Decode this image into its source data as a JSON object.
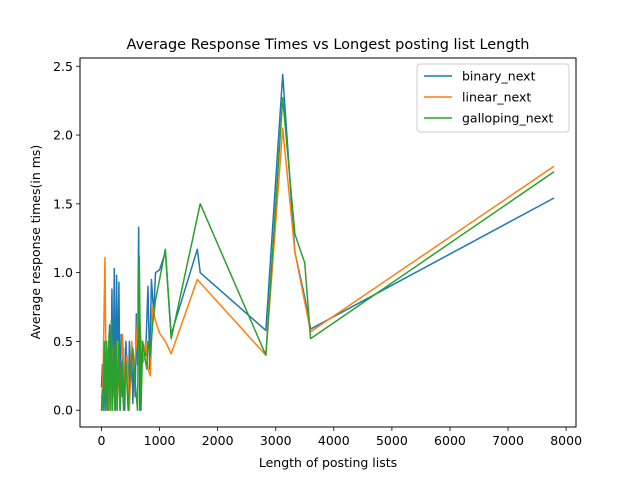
{
  "chart_data": {
    "type": "line",
    "title": "Average Response Times vs Longest posting list Length",
    "xlabel": "Length of posting lists",
    "ylabel": "Average response times(in ms)",
    "xlim": [
      -370,
      8170
    ],
    "ylim": [
      -0.122,
      2.56
    ],
    "xticks": [
      0,
      1000,
      2000,
      3000,
      4000,
      5000,
      6000,
      7000,
      8000
    ],
    "yticks": [
      0.0,
      0.5,
      1.0,
      1.5,
      2.0,
      2.5
    ],
    "xtick_labels": [
      "0",
      "1000",
      "2000",
      "3000",
      "4000",
      "5000",
      "6000",
      "7000",
      "8000"
    ],
    "ytick_labels": [
      "0.0",
      "0.5",
      "1.0",
      "1.5",
      "2.0",
      "2.5"
    ],
    "grid": false,
    "legend_position": "top-right",
    "series": [
      {
        "name": "binary_next",
        "color": "#1f77b4",
        "points": [
          [
            0,
            0.17
          ],
          [
            15,
            0.33
          ],
          [
            30,
            0.0
          ],
          [
            45,
            0.45
          ],
          [
            60,
            0.0
          ],
          [
            80,
            0.5
          ],
          [
            100,
            0.0
          ],
          [
            120,
            0.35
          ],
          [
            140,
            0.62
          ],
          [
            160,
            0.0
          ],
          [
            180,
            0.88
          ],
          [
            200,
            0.1
          ],
          [
            220,
            1.03
          ],
          [
            240,
            0.0
          ],
          [
            260,
            0.98
          ],
          [
            280,
            0.2
          ],
          [
            300,
            0.93
          ],
          [
            320,
            0.0
          ],
          [
            340,
            0.55
          ],
          [
            360,
            0.1
          ],
          [
            380,
            0.45
          ],
          [
            400,
            0.0
          ],
          [
            420,
            0.5
          ],
          [
            440,
            0.25
          ],
          [
            460,
            0.0
          ],
          [
            480,
            0.5
          ],
          [
            500,
            0.2
          ],
          [
            520,
            0.45
          ],
          [
            540,
            0.05
          ],
          [
            560,
            0.35
          ],
          [
            580,
            0.1
          ],
          [
            600,
            0.7
          ],
          [
            620,
            0.33
          ],
          [
            640,
            1.33
          ],
          [
            660,
            0.0
          ],
          [
            700,
            0.5
          ],
          [
            760,
            0.4
          ],
          [
            800,
            0.9
          ],
          [
            830,
            0.3
          ],
          [
            860,
            0.95
          ],
          [
            900,
            0.7
          ],
          [
            930,
            1.0
          ],
          [
            1000,
            1.02
          ],
          [
            1100,
            1.15
          ],
          [
            1200,
            0.55
          ],
          [
            1650,
            1.17
          ],
          [
            1700,
            1.0
          ],
          [
            2830,
            0.58
          ],
          [
            3120,
            2.44
          ],
          [
            3330,
            1.15
          ],
          [
            3500,
            0.82
          ],
          [
            3600,
            0.59
          ],
          [
            7780,
            1.54
          ]
        ]
      },
      {
        "name": "linear_next",
        "color": "#ff7f0e",
        "points": [
          [
            0,
            0.1
          ],
          [
            20,
            0.05
          ],
          [
            40,
            0.6
          ],
          [
            60,
            1.11
          ],
          [
            80,
            0.15
          ],
          [
            100,
            0.45
          ],
          [
            120,
            0.0
          ],
          [
            140,
            0.4
          ],
          [
            160,
            0.0
          ],
          [
            200,
            0.45
          ],
          [
            240,
            0.1
          ],
          [
            280,
            0.5
          ],
          [
            320,
            0.0
          ],
          [
            360,
            0.55
          ],
          [
            400,
            0.2
          ],
          [
            440,
            0.4
          ],
          [
            480,
            0.0
          ],
          [
            520,
            0.5
          ],
          [
            560,
            0.3
          ],
          [
            600,
            0.48
          ],
          [
            640,
            0.8
          ],
          [
            680,
            0.5
          ],
          [
            720,
            0.35
          ],
          [
            760,
            0.5
          ],
          [
            800,
            0.3
          ],
          [
            840,
            0.25
          ],
          [
            880,
            0.75
          ],
          [
            930,
            0.65
          ],
          [
            1000,
            0.56
          ],
          [
            1100,
            0.5
          ],
          [
            1200,
            0.41
          ],
          [
            1650,
            0.95
          ],
          [
            2830,
            0.4
          ],
          [
            3120,
            2.05
          ],
          [
            3330,
            1.15
          ],
          [
            3600,
            0.57
          ],
          [
            7780,
            1.77
          ]
        ]
      },
      {
        "name": "galloping_next",
        "color": "#2ca02c",
        "points": [
          [
            0,
            0.0
          ],
          [
            15,
            0.15
          ],
          [
            30,
            0.0
          ],
          [
            50,
            0.5
          ],
          [
            70,
            0.0
          ],
          [
            90,
            0.5
          ],
          [
            110,
            0.0
          ],
          [
            130,
            0.55
          ],
          [
            150,
            0.0
          ],
          [
            170,
            0.65
          ],
          [
            190,
            0.0
          ],
          [
            210,
            0.5
          ],
          [
            230,
            0.0
          ],
          [
            250,
            0.5
          ],
          [
            270,
            0.0
          ],
          [
            300,
            0.5
          ],
          [
            320,
            0.0
          ],
          [
            350,
            0.35
          ],
          [
            380,
            0.0
          ],
          [
            420,
            0.35
          ],
          [
            460,
            0.0
          ],
          [
            500,
            0.3
          ],
          [
            540,
            0.45
          ],
          [
            580,
            0.2
          ],
          [
            620,
            0.0
          ],
          [
            650,
            1.12
          ],
          [
            680,
            0.0
          ],
          [
            710,
            0.5
          ],
          [
            740,
            0.4
          ],
          [
            780,
            0.3
          ],
          [
            800,
            0.5
          ],
          [
            840,
            0.4
          ],
          [
            880,
            0.62
          ],
          [
            930,
            0.8
          ],
          [
            1000,
            0.95
          ],
          [
            1100,
            1.17
          ],
          [
            1200,
            0.52
          ],
          [
            1700,
            1.5
          ],
          [
            2830,
            0.4
          ],
          [
            3120,
            2.27
          ],
          [
            3330,
            1.28
          ],
          [
            3500,
            1.07
          ],
          [
            3600,
            0.52
          ],
          [
            7780,
            1.73
          ]
        ]
      }
    ]
  }
}
